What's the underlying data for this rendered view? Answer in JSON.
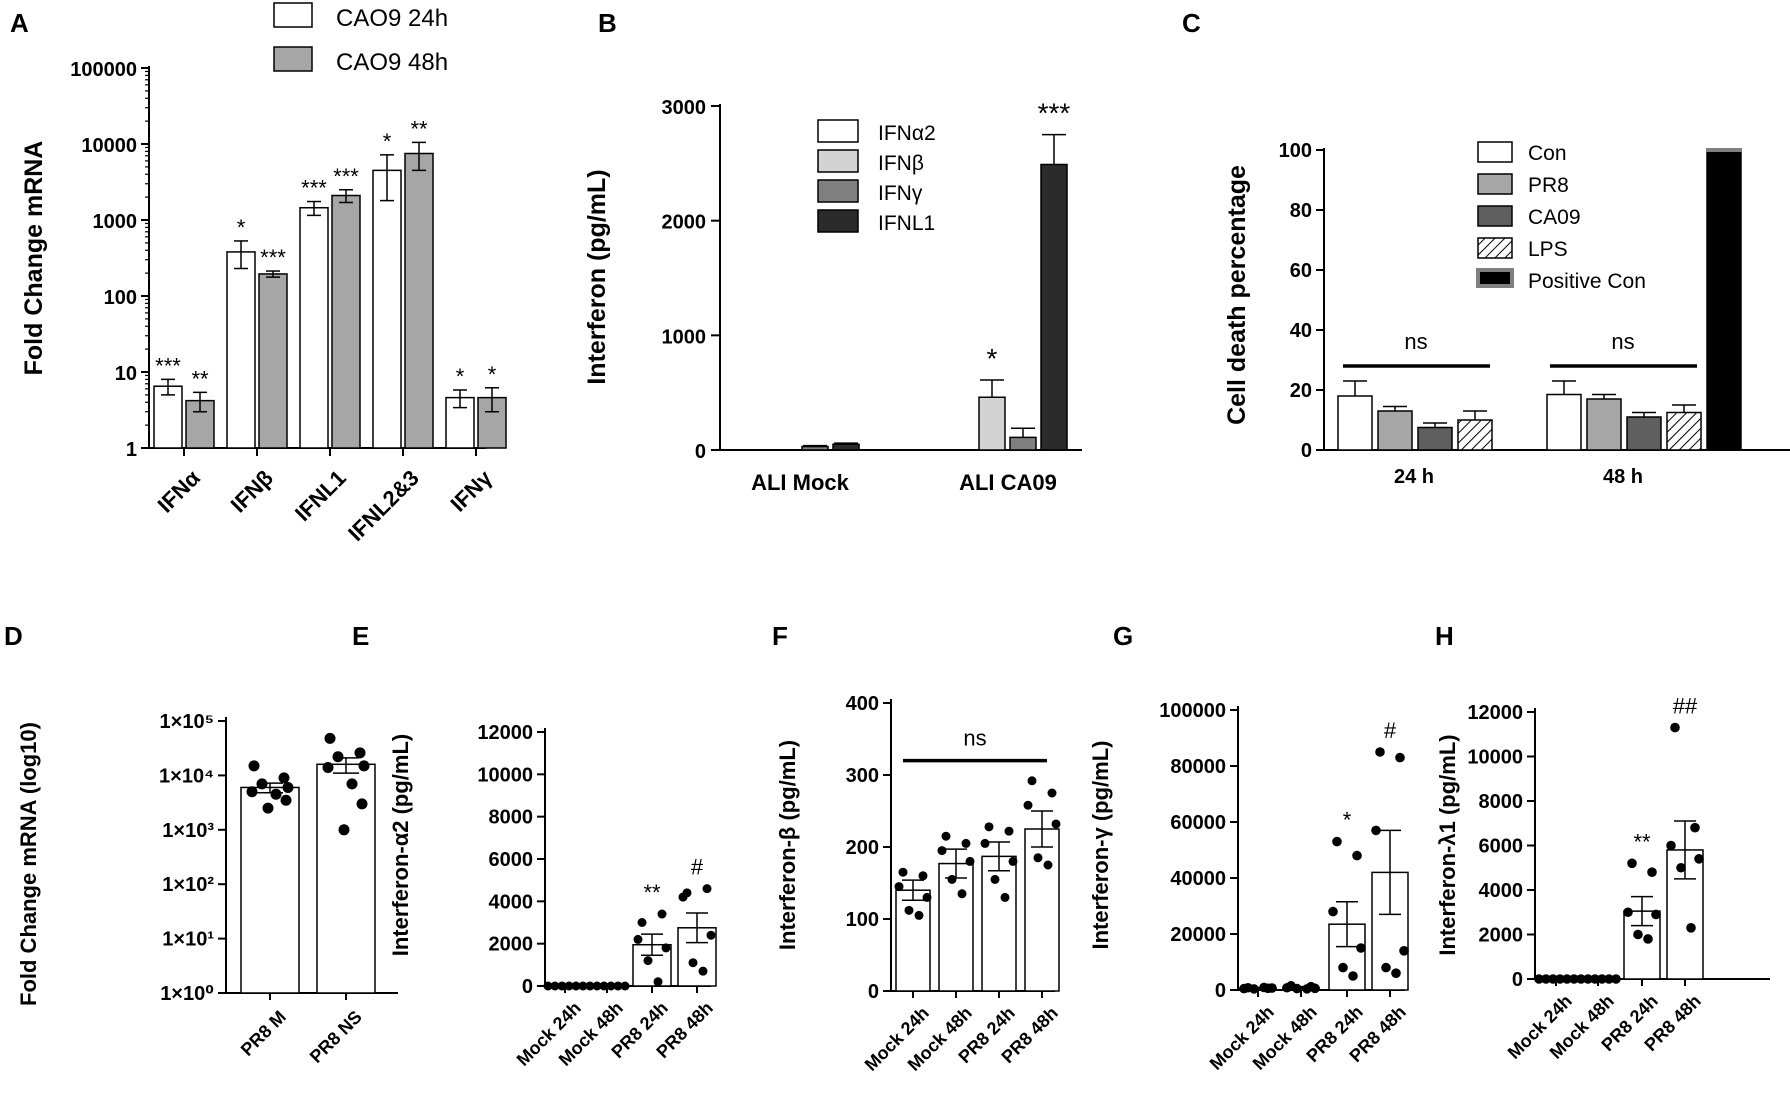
{
  "colors": {
    "white": "#ffffff",
    "light_gray": "#d3d3d3",
    "mid_gray": "#a6a6a6",
    "dark_gray": "#808080",
    "darker_gray": "#5f5f5f",
    "black_bar": "#2b2b2b",
    "black": "#000000"
  },
  "chart_data": [
    {
      "panel": "A",
      "type": "bar",
      "scale": "log",
      "ylabel": "Fold Change mRNA",
      "ylim": [
        1,
        100000
      ],
      "yticks": [
        "1",
        "10",
        "100",
        "1000",
        "10000",
        "100000"
      ],
      "categories": [
        "IFNα",
        "IFNβ",
        "IFNL1",
        "IFNL2&3",
        "IFNγ"
      ],
      "series": [
        {
          "name": "CAO9 24h",
          "values": [
            6.5,
            380,
            1450,
            4500,
            4.6
          ],
          "errors": [
            1.5,
            150,
            300,
            2700,
            1.2
          ],
          "sig": [
            "***",
            "*",
            "***",
            "*",
            "*"
          ]
        },
        {
          "name": "CAO9 48h",
          "values": [
            4.2,
            195,
            2100,
            7500,
            4.6
          ],
          "errors": [
            1.2,
            18,
            400,
            3000,
            1.6
          ],
          "sig": [
            "**",
            "***",
            "***",
            "**",
            "*"
          ]
        }
      ]
    },
    {
      "panel": "B",
      "type": "bar",
      "ylabel": "Interferon (pg/mL)",
      "ylim": [
        0,
        3000
      ],
      "yticks": [
        "0",
        "1000",
        "2000",
        "3000"
      ],
      "categories": [
        "ALI Mock",
        "ALI CA09"
      ],
      "series": [
        {
          "name": "IFNα2",
          "values": [
            0,
            0
          ],
          "errors": [
            0,
            0
          ],
          "sig": [
            "",
            ""
          ]
        },
        {
          "name": "IFNβ",
          "values": [
            0,
            460
          ],
          "errors": [
            0,
            150
          ],
          "sig": [
            "",
            "*"
          ]
        },
        {
          "name": "IFNγ",
          "values": [
            30,
            110
          ],
          "errors": [
            8,
            80
          ],
          "sig": [
            "",
            ""
          ]
        },
        {
          "name": "IFNL1",
          "values": [
            50,
            2490
          ],
          "errors": [
            10,
            260
          ],
          "sig": [
            "",
            "***"
          ]
        }
      ]
    },
    {
      "panel": "C",
      "type": "bar",
      "ylabel": "Cell death percentage",
      "ylim": [
        0,
        100
      ],
      "yticks": [
        "0",
        "20",
        "40",
        "60",
        "80",
        "100"
      ],
      "categories": [
        "24 h",
        "48 h"
      ],
      "series": [
        {
          "name": "Con",
          "values": [
            18,
            18.5
          ],
          "errors": [
            5,
            4.5
          ]
        },
        {
          "name": "PR8",
          "values": [
            13,
            17
          ],
          "errors": [
            1.5,
            1.5
          ]
        },
        {
          "name": "CA09",
          "values": [
            7.5,
            11
          ],
          "errors": [
            1.5,
            1.5
          ]
        },
        {
          "name": "LPS",
          "values": [
            10,
            12.5
          ],
          "errors": [
            3,
            2.5
          ]
        },
        {
          "name": "Positive Con",
          "values": [
            null,
            100
          ],
          "errors": [
            0,
            0
          ]
        }
      ],
      "annotations": [
        "ns",
        "ns"
      ]
    },
    {
      "panel": "D",
      "type": "bar",
      "scale": "log",
      "ylabel": "Fold Change mRNA (log10)",
      "ylim": [
        1,
        100000
      ],
      "yticks": [
        "1×10⁰",
        "1×10¹",
        "1×10²",
        "1×10³",
        "1×10⁴",
        "1×10⁵"
      ],
      "categories": [
        "PR8 M",
        "PR8 NS"
      ],
      "values": [
        6000,
        16000
      ],
      "errors": [
        1200,
        5000
      ],
      "points": [
        [
          15000,
          9000,
          7000,
          6000,
          5000,
          4500,
          3500,
          2500
        ],
        [
          48000,
          26000,
          22000,
          15000,
          14000,
          7000,
          3000,
          1000
        ]
      ]
    },
    {
      "panel": "E",
      "type": "bar",
      "ylabel": "Interferon-α2 (pg/mL)",
      "ylim": [
        0,
        12000
      ],
      "yticks": [
        "0",
        "2000",
        "4000",
        "6000",
        "8000",
        "10000",
        "12000"
      ],
      "categories": [
        "Mock 24h",
        "Mock 48h",
        "PR8 24h",
        "PR8 48h"
      ],
      "values": [
        0,
        0,
        1950,
        2750
      ],
      "errors": [
        0,
        0,
        500,
        700
      ],
      "points": [
        [
          0,
          0,
          0,
          0,
          0,
          0
        ],
        [
          0,
          0,
          0,
          0,
          0,
          0
        ],
        [
          3000,
          3400,
          2200,
          1800,
          1200,
          200
        ],
        [
          4400,
          4600,
          4200,
          2400,
          1100,
          700
        ]
      ],
      "sig": [
        "",
        "",
        "**",
        "#"
      ]
    },
    {
      "panel": "F",
      "type": "bar",
      "ylabel": "Interferon-β (pg/mL)",
      "ylim": [
        0,
        400
      ],
      "yticks": [
        "0",
        "100",
        "200",
        "300",
        "400"
      ],
      "categories": [
        "Mock 24h",
        "Mock 48h",
        "PR8 24h",
        "PR8 48h"
      ],
      "values": [
        140,
        177,
        187,
        225
      ],
      "errors": [
        14,
        20,
        20,
        25
      ],
      "points": [
        [
          165,
          160,
          145,
          130,
          112,
          105
        ],
        [
          215,
          205,
          195,
          180,
          155,
          135
        ],
        [
          228,
          222,
          205,
          180,
          155,
          130
        ],
        [
          292,
          275,
          258,
          232,
          185,
          175
        ]
      ],
      "sig": [
        "ns"
      ]
    },
    {
      "panel": "G",
      "type": "bar",
      "ylabel": "Interferon-γ (pg/mL)",
      "ylim": [
        0,
        100000
      ],
      "yticks": [
        "0",
        "20000",
        "40000",
        "60000",
        "80000",
        "100000"
      ],
      "categories": [
        "Mock 24h",
        "Mock 48h",
        "PR8 24h",
        "PR8 48h"
      ],
      "values": [
        700,
        900,
        23500,
        42000
      ],
      "errors": [
        200,
        300,
        8000,
        15000
      ],
      "points": [
        [
          800,
          600,
          500,
          700,
          400,
          900
        ],
        [
          1500,
          1200,
          800,
          600,
          500,
          400
        ],
        [
          53000,
          48000,
          28000,
          15000,
          8000,
          5000
        ],
        [
          85000,
          83000,
          57000,
          14000,
          8000,
          6000
        ]
      ],
      "sig": [
        "",
        "",
        "*",
        "#"
      ]
    },
    {
      "panel": "H",
      "type": "bar",
      "ylabel": "Interferon-λ1 (pg/mL)",
      "ylim": [
        0,
        12000
      ],
      "yticks": [
        "0",
        "2000",
        "4000",
        "6000",
        "8000",
        "10000",
        "12000"
      ],
      "categories": [
        "Mock 24h",
        "Mock 48h",
        "PR8 24h",
        "PR8 48h"
      ],
      "values": [
        0,
        0,
        3050,
        5800
      ],
      "errors": [
        0,
        0,
        650,
        1300
      ],
      "points": [
        [
          0,
          0,
          0,
          0,
          0,
          0
        ],
        [
          0,
          0,
          0,
          0,
          0,
          0
        ],
        [
          5200,
          4800,
          3000,
          2900,
          2000,
          1800
        ],
        [
          11300,
          6800,
          6000,
          5400,
          5000,
          2300
        ]
      ],
      "sig": [
        "",
        "",
        "**",
        "##"
      ]
    }
  ]
}
